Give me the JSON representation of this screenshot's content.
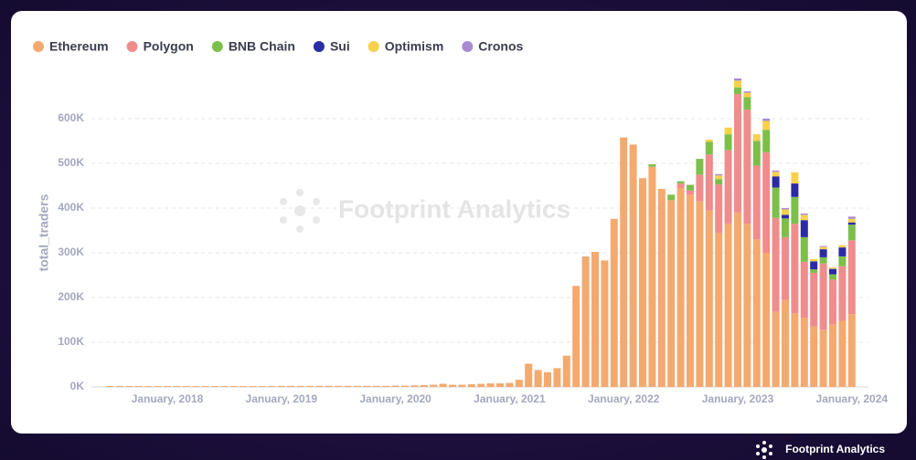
{
  "chart_data": {
    "type": "stacked_bar",
    "watermark": "Footprint Analytics",
    "brand": "Footprint Analytics",
    "ylabel": "total_traders",
    "categories": [
      "2017-07",
      "2017-08",
      "2017-09",
      "2017-10",
      "2017-11",
      "2017-12",
      "2018-01",
      "2018-02",
      "2018-03",
      "2018-04",
      "2018-05",
      "2018-06",
      "2018-07",
      "2018-08",
      "2018-09",
      "2018-10",
      "2018-11",
      "2018-12",
      "2019-01",
      "2019-02",
      "2019-03",
      "2019-04",
      "2019-05",
      "2019-06",
      "2019-07",
      "2019-08",
      "2019-09",
      "2019-10",
      "2019-11",
      "2019-12",
      "2020-01",
      "2020-02",
      "2020-03",
      "2020-04",
      "2020-05",
      "2020-06",
      "2020-07",
      "2020-08",
      "2020-09",
      "2020-10",
      "2020-11",
      "2020-12",
      "2021-01",
      "2021-02",
      "2021-03",
      "2021-04",
      "2021-05",
      "2021-06",
      "2021-07",
      "2021-08",
      "2021-09",
      "2021-10",
      "2021-11",
      "2021-12",
      "2022-01",
      "2022-02",
      "2022-03",
      "2022-04",
      "2022-05",
      "2022-06",
      "2022-07",
      "2022-08",
      "2022-09",
      "2022-10",
      "2022-11",
      "2022-12",
      "2023-01",
      "2023-02",
      "2023-03",
      "2023-04",
      "2023-05",
      "2023-06",
      "2023-07",
      "2023-08",
      "2023-09",
      "2023-10",
      "2023-11",
      "2023-12",
      "2024-01"
    ],
    "series": [
      {
        "name": "Ethereum",
        "color": "#f4a96e",
        "values": [
          2000,
          2000,
          2000,
          2000,
          2000,
          2000,
          2000,
          2000,
          2000,
          2000,
          2000,
          2000,
          2000,
          2000,
          2000,
          2000,
          2000,
          2000,
          2500,
          2500,
          2500,
          2500,
          2500,
          2500,
          2500,
          2500,
          2500,
          2500,
          2500,
          2500,
          3000,
          3000,
          3500,
          4000,
          5000,
          7000,
          5000,
          5000,
          6000,
          7000,
          8000,
          8000,
          9000,
          16000,
          52000,
          38000,
          33000,
          42000,
          70000,
          226000,
          292000,
          302000,
          283000,
          376000,
          558000,
          542000,
          467000,
          493000,
          443000,
          418000,
          445000,
          430000,
          415000,
          395000,
          345000,
          365000,
          390000,
          365000,
          330000,
          300000,
          168000,
          195000,
          165000,
          155000,
          135000,
          128000,
          140000,
          148000,
          163000
        ]
      },
      {
        "name": "Polygon",
        "color": "#f08c8c",
        "values": [
          0,
          0,
          0,
          0,
          0,
          0,
          0,
          0,
          0,
          0,
          0,
          0,
          0,
          0,
          0,
          0,
          0,
          0,
          0,
          0,
          0,
          0,
          0,
          0,
          0,
          0,
          0,
          0,
          0,
          0,
          0,
          0,
          0,
          0,
          0,
          0,
          0,
          0,
          0,
          0,
          0,
          0,
          0,
          0,
          0,
          0,
          0,
          0,
          0,
          0,
          0,
          0,
          0,
          0,
          0,
          0,
          0,
          0,
          0,
          0,
          10000,
          10000,
          60000,
          125000,
          108000,
          165000,
          265000,
          255000,
          165000,
          225000,
          210000,
          140000,
          200000,
          125000,
          120000,
          148000,
          100000,
          122000,
          165000
        ]
      },
      {
        "name": "BNB Chain",
        "color": "#7cbf4b",
        "values": [
          0,
          0,
          0,
          0,
          0,
          0,
          0,
          0,
          0,
          0,
          0,
          0,
          0,
          0,
          0,
          0,
          0,
          0,
          0,
          0,
          0,
          0,
          0,
          0,
          0,
          0,
          0,
          0,
          0,
          0,
          0,
          0,
          0,
          0,
          0,
          0,
          0,
          0,
          0,
          0,
          0,
          0,
          0,
          0,
          0,
          0,
          0,
          0,
          0,
          0,
          0,
          0,
          0,
          0,
          0,
          0,
          0,
          5000,
          0,
          12000,
          5000,
          12000,
          35000,
          28000,
          12000,
          35000,
          15000,
          28000,
          55000,
          50000,
          68000,
          42000,
          60000,
          55000,
          8000,
          14000,
          12000,
          22000,
          35000
        ]
      },
      {
        "name": "Sui",
        "color": "#2b2ba6",
        "values": [
          0,
          0,
          0,
          0,
          0,
          0,
          0,
          0,
          0,
          0,
          0,
          0,
          0,
          0,
          0,
          0,
          0,
          0,
          0,
          0,
          0,
          0,
          0,
          0,
          0,
          0,
          0,
          0,
          0,
          0,
          0,
          0,
          0,
          0,
          0,
          0,
          0,
          0,
          0,
          0,
          0,
          0,
          0,
          0,
          0,
          0,
          0,
          0,
          0,
          0,
          0,
          0,
          0,
          0,
          0,
          0,
          0,
          0,
          0,
          0,
          0,
          0,
          0,
          0,
          0,
          0,
          0,
          0,
          0,
          0,
          25000,
          8000,
          30000,
          38000,
          18000,
          18000,
          12000,
          20000,
          5000
        ]
      },
      {
        "name": "Optimism",
        "color": "#f7d04c",
        "values": [
          0,
          0,
          0,
          0,
          0,
          0,
          0,
          0,
          0,
          0,
          0,
          0,
          0,
          0,
          0,
          0,
          0,
          0,
          0,
          0,
          0,
          0,
          0,
          0,
          0,
          0,
          0,
          0,
          0,
          0,
          0,
          0,
          0,
          0,
          0,
          0,
          0,
          0,
          0,
          0,
          0,
          0,
          0,
          0,
          0,
          0,
          0,
          0,
          0,
          0,
          0,
          0,
          0,
          0,
          0,
          0,
          0,
          0,
          0,
          0,
          0,
          0,
          0,
          5000,
          8000,
          15000,
          15000,
          10000,
          15000,
          20000,
          10000,
          12000,
          25000,
          12000,
          5000,
          5000,
          3000,
          5000,
          8000
        ]
      },
      {
        "name": "Cronos",
        "color": "#a98ad2",
        "values": [
          0,
          0,
          0,
          0,
          0,
          0,
          0,
          0,
          0,
          0,
          0,
          0,
          0,
          0,
          0,
          0,
          0,
          0,
          0,
          0,
          0,
          0,
          0,
          0,
          0,
          0,
          0,
          0,
          0,
          0,
          0,
          0,
          0,
          0,
          0,
          0,
          0,
          0,
          0,
          0,
          0,
          0,
          0,
          0,
          0,
          0,
          0,
          0,
          0,
          0,
          0,
          0,
          0,
          0,
          0,
          0,
          0,
          0,
          0,
          0,
          0,
          0,
          0,
          0,
          3000,
          0,
          5000,
          3000,
          0,
          5000,
          3000,
          3000,
          0,
          3000,
          0,
          2000,
          0,
          0,
          5000
        ]
      }
    ],
    "xticks": [
      {
        "value": "2018-01",
        "label": "January, 2018"
      },
      {
        "value": "2019-01",
        "label": "January, 2019"
      },
      {
        "value": "2020-01",
        "label": "January, 2020"
      },
      {
        "value": "2021-01",
        "label": "January, 2021"
      },
      {
        "value": "2022-01",
        "label": "January, 2022"
      },
      {
        "value": "2023-01",
        "label": "January, 2023"
      },
      {
        "value": "2024-01",
        "label": "January, 2024"
      }
    ],
    "ylim": [
      0,
      700000
    ],
    "yticks": [
      {
        "value": 0,
        "label": "0K"
      },
      {
        "value": 100000,
        "label": "100K"
      },
      {
        "value": 200000,
        "label": "200K"
      },
      {
        "value": 300000,
        "label": "300K"
      },
      {
        "value": 400000,
        "label": "400K"
      },
      {
        "value": 500000,
        "label": "500K"
      },
      {
        "value": 600000,
        "label": "600K"
      }
    ],
    "grid": true
  }
}
